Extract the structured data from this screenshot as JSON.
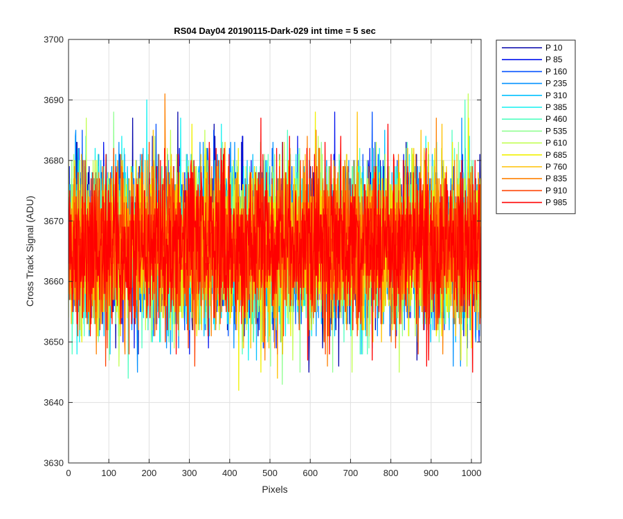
{
  "chart_data": {
    "type": "line",
    "title": "RS04 Day04 20190115-Dark-029 int time = 5 sec",
    "xlabel": "Pixels",
    "ylabel": "Cross Track Signal (ADU)",
    "xlim": [
      0,
      1024
    ],
    "ylim": [
      3630,
      3700
    ],
    "xticks": [
      0,
      100,
      200,
      300,
      400,
      500,
      600,
      700,
      800,
      900,
      1000
    ],
    "yticks": [
      3630,
      3640,
      3650,
      3660,
      3670,
      3680,
      3690,
      3700
    ],
    "grid": true,
    "legend_position": "outside-top-right",
    "noise_model": {
      "mean": 3666,
      "std": 6.5,
      "min": 3637,
      "max": 3697,
      "points_per_series": 1024
    },
    "series": [
      {
        "name": "P 10",
        "color": "#0000aa"
      },
      {
        "name": "P 85",
        "color": "#0010ee"
      },
      {
        "name": "P 160",
        "color": "#0050ff"
      },
      {
        "name": "P 235",
        "color": "#0090ff"
      },
      {
        "name": "P 310",
        "color": "#00c0ff"
      },
      {
        "name": "P 385",
        "color": "#10f0f0"
      },
      {
        "name": "P 460",
        "color": "#50ffc0"
      },
      {
        "name": "P 535",
        "color": "#90ff90"
      },
      {
        "name": "P 610",
        "color": "#c0ff50"
      },
      {
        "name": "P 685",
        "color": "#f0f000"
      },
      {
        "name": "P 760",
        "color": "#ffc000"
      },
      {
        "name": "P 835",
        "color": "#ff8000"
      },
      {
        "name": "P 910",
        "color": "#ff4000"
      },
      {
        "name": "P 985",
        "color": "#ff0000"
      }
    ]
  }
}
